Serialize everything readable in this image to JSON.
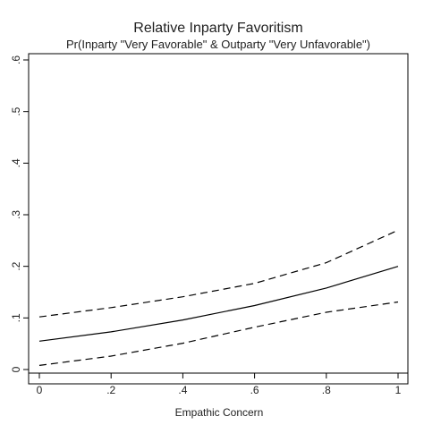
{
  "chart_data": {
    "type": "line",
    "title": "Relative Inparty Favoritism",
    "subtitle": "Pr(Inparty \"Very Favorable\" & Outparty \"Very Unfavorable\")",
    "xlabel": "Empathic Concern",
    "ylabel": "",
    "xlim": [
      0,
      1
    ],
    "ylim": [
      0,
      0.6
    ],
    "x_ticks": [
      "0",
      ".2",
      ".4",
      ".6",
      ".8",
      "1"
    ],
    "y_ticks": [
      "0",
      ".1",
      ".2",
      ".3",
      ".4",
      ".5",
      ".6"
    ],
    "x": [
      0,
      0.2,
      0.4,
      0.6,
      0.8,
      1.0
    ],
    "series": [
      {
        "style": "solid",
        "color": "#000000",
        "values": [
          0.055,
          0.073,
          0.096,
          0.124,
          0.158,
          0.2
        ]
      },
      {
        "style": "dashed",
        "color": "#000000",
        "values": [
          0.102,
          0.12,
          0.141,
          0.167,
          0.207,
          0.27
        ]
      },
      {
        "style": "dashed",
        "color": "#000000",
        "values": [
          0.008,
          0.026,
          0.051,
          0.082,
          0.111,
          0.131
        ]
      }
    ],
    "grid": false,
    "legend": "none"
  }
}
